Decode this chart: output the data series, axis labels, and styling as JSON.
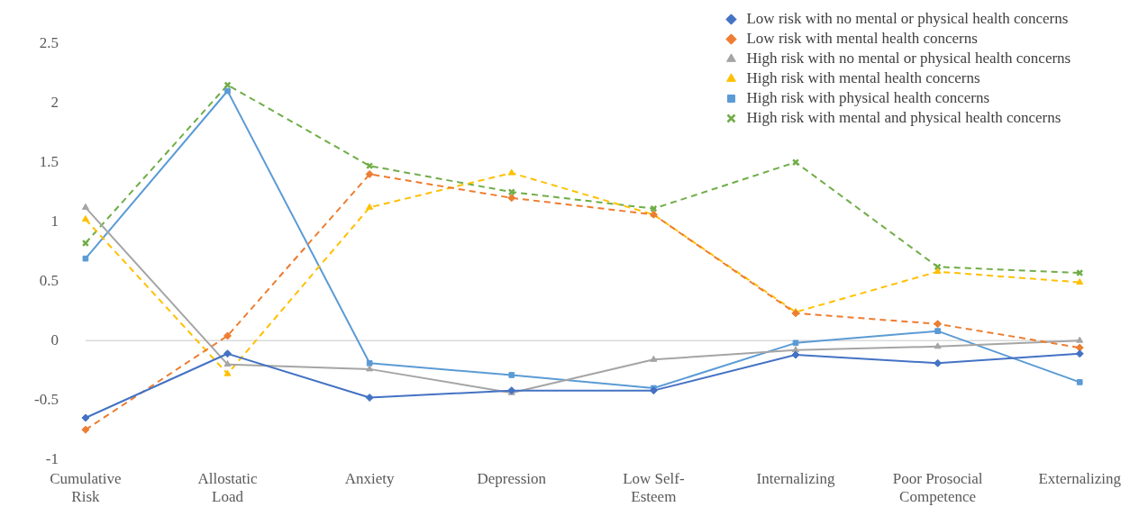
{
  "chart_data": {
    "type": "line",
    "categories": [
      "Cumulative Risk",
      "Allostatic Load",
      "Anxiety",
      "Depression",
      "Low Self-Esteem",
      "Internalizing",
      "Poor Prosocial Competence",
      "Externalizing"
    ],
    "series": [
      {
        "name": "Low risk with no mental or physical health concerns",
        "color": "#4472c4",
        "marker": "diamond",
        "line_style": "solid",
        "values": [
          -0.65,
          -0.11,
          -0.48,
          -0.42,
          -0.42,
          -0.12,
          -0.19,
          -0.11
        ]
      },
      {
        "name": "Low risk with mental health concerns",
        "color": "#ed7d31",
        "marker": "diamond",
        "line_style": "dashed",
        "values": [
          -0.75,
          0.04,
          1.4,
          1.2,
          1.06,
          0.23,
          0.14,
          -0.06
        ]
      },
      {
        "name": "High risk with no mental or physical health concerns",
        "color": "#a5a5a5",
        "marker": "triangle",
        "line_style": "solid",
        "values": [
          1.12,
          -0.2,
          -0.24,
          -0.44,
          -0.16,
          -0.08,
          -0.05,
          0.0
        ]
      },
      {
        "name": "High risk with mental health concerns",
        "color": "#ffc000",
        "marker": "triangle",
        "line_style": "dashed",
        "values": [
          1.02,
          -0.28,
          1.12,
          1.41,
          1.06,
          0.24,
          0.58,
          0.49
        ]
      },
      {
        "name": "High risk with physical health concerns",
        "color": "#5b9bd5",
        "marker": "square",
        "line_style": "solid",
        "values": [
          0.69,
          2.1,
          -0.19,
          -0.29,
          -0.4,
          -0.02,
          0.08,
          -0.35
        ]
      },
      {
        "name": "High risk with mental and physical health concerns",
        "color": "#70ad47",
        "marker": "cross",
        "line_style": "dashed",
        "values": [
          0.82,
          2.15,
          1.47,
          1.25,
          1.11,
          1.5,
          0.62,
          0.57
        ]
      }
    ],
    "ylim": [
      -1,
      2.5
    ],
    "yticks": [
      -1,
      -0.5,
      0,
      0.5,
      1,
      1.5,
      2,
      2.5
    ],
    "grid": false,
    "legend": "top right",
    "ref_lines": [
      {
        "axis": "y",
        "value": 0,
        "color": "#d9d9d9"
      }
    ]
  }
}
